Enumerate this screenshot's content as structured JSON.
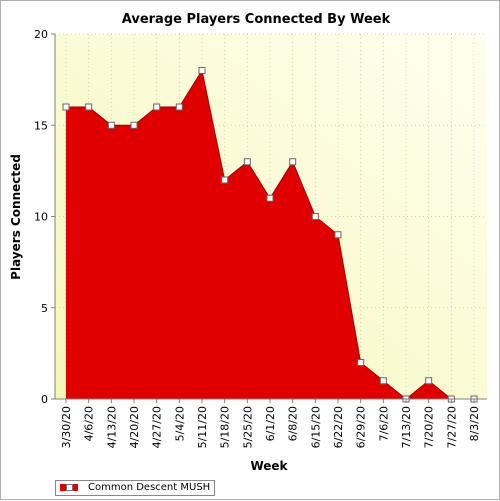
{
  "chart_data": {
    "type": "area",
    "title": "Average Players Connected By Week",
    "xlabel": "Week",
    "ylabel": "Players Connected",
    "categories": [
      "3/30/20",
      "4/6/20",
      "4/13/20",
      "4/20/20",
      "4/27/20",
      "5/4/20",
      "5/11/20",
      "5/18/20",
      "5/25/20",
      "6/1/20",
      "6/8/20",
      "6/15/20",
      "6/22/20",
      "6/29/20",
      "7/6/20",
      "7/13/20",
      "7/20/20",
      "7/27/20",
      "8/3/20"
    ],
    "series": [
      {
        "name": "Common Descent MUSH",
        "values": [
          16,
          16,
          15,
          15,
          16,
          16,
          18,
          12,
          13,
          11,
          13,
          10,
          9,
          2,
          1,
          0,
          1,
          0,
          0
        ]
      }
    ],
    "ylim": [
      0,
      20
    ],
    "yticks": [
      0,
      5,
      10,
      15,
      20
    ],
    "grid": true,
    "legend_position": "bottom-left",
    "colors": {
      "series": "#e00000",
      "plot_bg": "#ffffe0"
    }
  }
}
